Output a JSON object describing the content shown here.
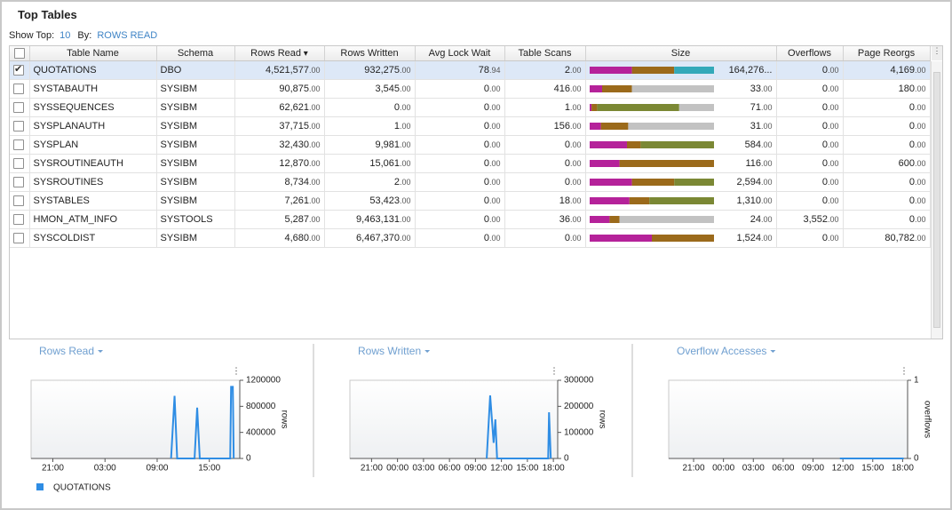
{
  "header": {
    "title": "Top Tables",
    "show_top_label": "Show Top:",
    "show_top_value": "10",
    "by_label": "By:",
    "by_value": "ROWS READ"
  },
  "table": {
    "columns": [
      "Table Name",
      "Schema",
      "Rows Read",
      "Rows Written",
      "Avg Lock Wait",
      "Table Scans",
      "Size",
      "Overflows",
      "Page Reorgs"
    ],
    "sort_column": 2,
    "selected_row": 0,
    "rows": [
      [
        "QUOTATIONS",
        "DBO",
        "4,521,577.00",
        "932,275.00",
        "78.94",
        "2.00",
        "164,276...",
        "0.00",
        "4,169.00"
      ],
      [
        "SYSTABAUTH",
        "SYSIBM",
        "90,875.00",
        "3,545.00",
        "0.00",
        "416.00",
        "33.00",
        "0.00",
        "180.00"
      ],
      [
        "SYSSEQUENCES",
        "SYSIBM",
        "62,621.00",
        "0.00",
        "0.00",
        "1.00",
        "71.00",
        "0.00",
        "0.00"
      ],
      [
        "SYSPLANAUTH",
        "SYSIBM",
        "37,715.00",
        "1.00",
        "0.00",
        "156.00",
        "31.00",
        "0.00",
        "0.00"
      ],
      [
        "SYSPLAN",
        "SYSIBM",
        "32,430.00",
        "9,981.00",
        "0.00",
        "0.00",
        "584.00",
        "0.00",
        "0.00"
      ],
      [
        "SYSROUTINEAUTH",
        "SYSIBM",
        "12,870.00",
        "15,061.00",
        "0.00",
        "0.00",
        "116.00",
        "0.00",
        "600.00"
      ],
      [
        "SYSROUTINES",
        "SYSIBM",
        "8,734.00",
        "2.00",
        "0.00",
        "0.00",
        "2,594.00",
        "0.00",
        "0.00"
      ],
      [
        "SYSTABLES",
        "SYSIBM",
        "7,261.00",
        "53,423.00",
        "0.00",
        "18.00",
        "1,310.00",
        "0.00",
        "0.00"
      ],
      [
        "HMON_ATM_INFO",
        "SYSTOOLS",
        "5,287.00",
        "9,463,131.00",
        "0.00",
        "36.00",
        "24.00",
        "3,552.00",
        "0.00"
      ],
      [
        "SYSCOLDIST",
        "SYSIBM",
        "4,680.00",
        "6,467,370.00",
        "0.00",
        "0.00",
        "1,524.00",
        "0.00",
        "80,782.00"
      ]
    ],
    "size_bar": {
      "xlim": [
        0,
        100
      ],
      "series": [
        {
          "color": "#b5229a",
          "values": [
            34,
            10,
            1.5,
            9,
            30,
            24,
            34,
            32,
            16,
            50
          ]
        },
        {
          "color": "#9b6a1b",
          "values": [
            34,
            24,
            4.5,
            22,
            11,
            76,
            34,
            16,
            8,
            50
          ]
        },
        {
          "color": "#7b8834",
          "values": [
            0,
            0,
            66,
            0,
            59,
            0,
            32,
            52,
            0,
            0
          ]
        },
        {
          "color": "#33a9b9",
          "values": [
            32,
            0,
            0,
            0,
            0,
            0,
            0,
            0,
            0,
            0
          ]
        },
        {
          "color": "#c2c2c2",
          "values": [
            0,
            66,
            28,
            69,
            0,
            0,
            0,
            0,
            76,
            0
          ]
        }
      ]
    }
  },
  "chart_data": [
    {
      "type": "line",
      "title": "Rows Read",
      "y_label": "rows",
      "xlim": [
        18.5,
        42.5
      ],
      "xticks": [
        {
          "value": 21,
          "label": "21:00"
        },
        {
          "value": 27,
          "label": "03:00"
        },
        {
          "value": 33,
          "label": "09:00"
        },
        {
          "value": 39,
          "label": "15:00"
        }
      ],
      "ylim": [
        0,
        1200000
      ],
      "yticks": [
        0,
        400000,
        800000,
        1200000
      ],
      "series": [
        {
          "color": "#2f8de4",
          "x": [
            34.6,
            35.0,
            35.3,
            37.3,
            37.6,
            37.9,
            41.4,
            41.5,
            41.7,
            41.8
          ],
          "values": [
            0,
            960000,
            0,
            0,
            780000,
            0,
            0,
            1100000,
            1100000,
            0
          ]
        }
      ]
    },
    {
      "type": "line",
      "title": "Rows Written",
      "y_label": "rows",
      "xlim": [
        18.5,
        42.5
      ],
      "xticks": [
        {
          "value": 21,
          "label": "21:00"
        },
        {
          "value": 24,
          "label": "00:00"
        },
        {
          "value": 27,
          "label": "03:00"
        },
        {
          "value": 30,
          "label": "06:00"
        },
        {
          "value": 33,
          "label": "09:00"
        },
        {
          "value": 36,
          "label": "12:00"
        },
        {
          "value": 39,
          "label": "15:00"
        },
        {
          "value": 42,
          "label": "18:00"
        }
      ],
      "ylim": [
        0,
        300000
      ],
      "yticks": [
        0,
        100000,
        200000,
        300000
      ],
      "series": [
        {
          "color": "#2f8de4",
          "x": [
            34.3,
            34.7,
            35.1,
            35.3,
            35.5,
            35.9,
            41.4,
            41.5,
            41.7
          ],
          "values": [
            0,
            242000,
            60000,
            150000,
            0,
            0,
            0,
            177000,
            0
          ]
        }
      ]
    },
    {
      "type": "line",
      "title": "Overflow Accesses",
      "y_label": "overflows",
      "xlim": [
        18.5,
        42.5
      ],
      "xticks": [
        {
          "value": 21,
          "label": "21:00"
        },
        {
          "value": 24,
          "label": "00:00"
        },
        {
          "value": 27,
          "label": "03:00"
        },
        {
          "value": 30,
          "label": "06:00"
        },
        {
          "value": 33,
          "label": "09:00"
        },
        {
          "value": 36,
          "label": "12:00"
        },
        {
          "value": 39,
          "label": "15:00"
        },
        {
          "value": 42,
          "label": "18:00"
        }
      ],
      "ylim": [
        0,
        1
      ],
      "yticks": [
        0,
        1
      ],
      "series": [
        {
          "color": "#2f8de4",
          "x": [
            35.7,
            42.1
          ],
          "values": [
            0,
            0
          ]
        }
      ]
    }
  ],
  "legend": {
    "name": "QUOTATIONS",
    "color": "#2f8de4"
  }
}
